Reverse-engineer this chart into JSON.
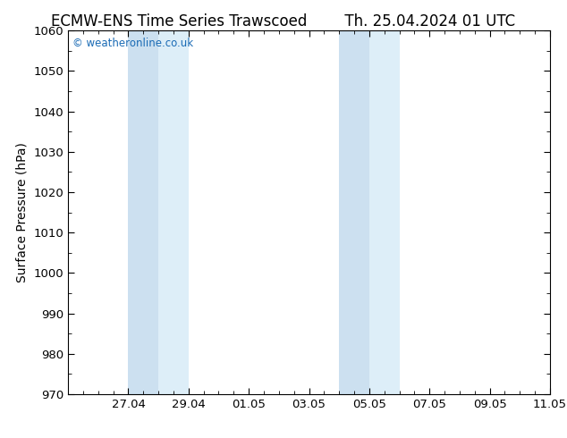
{
  "title_left": "ECMW-ENS Time Series Trawscoed",
  "title_right": "Th. 25.04.2024 01 UTC",
  "ylabel": "Surface Pressure (hPa)",
  "ylim": [
    970,
    1060
  ],
  "yticks": [
    970,
    980,
    990,
    1000,
    1010,
    1020,
    1030,
    1040,
    1050,
    1060
  ],
  "xlim": [
    0,
    16
  ],
  "xtick_positions": [
    2,
    4,
    6,
    8,
    10,
    12,
    14,
    16
  ],
  "xtick_labels": [
    "27.04",
    "29.04",
    "01.05",
    "03.05",
    "05.05",
    "07.05",
    "09.05",
    "11.05"
  ],
  "shaded_bands": [
    {
      "x_start": 2.0,
      "x_end": 3.0,
      "color": "#cce0f0"
    },
    {
      "x_start": 3.0,
      "x_end": 4.0,
      "color": "#ddeef8"
    },
    {
      "x_start": 9.0,
      "x_end": 10.0,
      "color": "#cce0f0"
    },
    {
      "x_start": 10.0,
      "x_end": 11.0,
      "color": "#ddeef8"
    }
  ],
  "watermark": "© weatheronline.co.uk",
  "watermark_color": "#1a6bb5",
  "background_color": "#ffffff",
  "axes_bg_color": "#ffffff",
  "title_fontsize": 12,
  "tick_fontsize": 9.5,
  "ylabel_fontsize": 10,
  "minor_tick_interval": 0.5,
  "y_minor_tick_interval": 5
}
